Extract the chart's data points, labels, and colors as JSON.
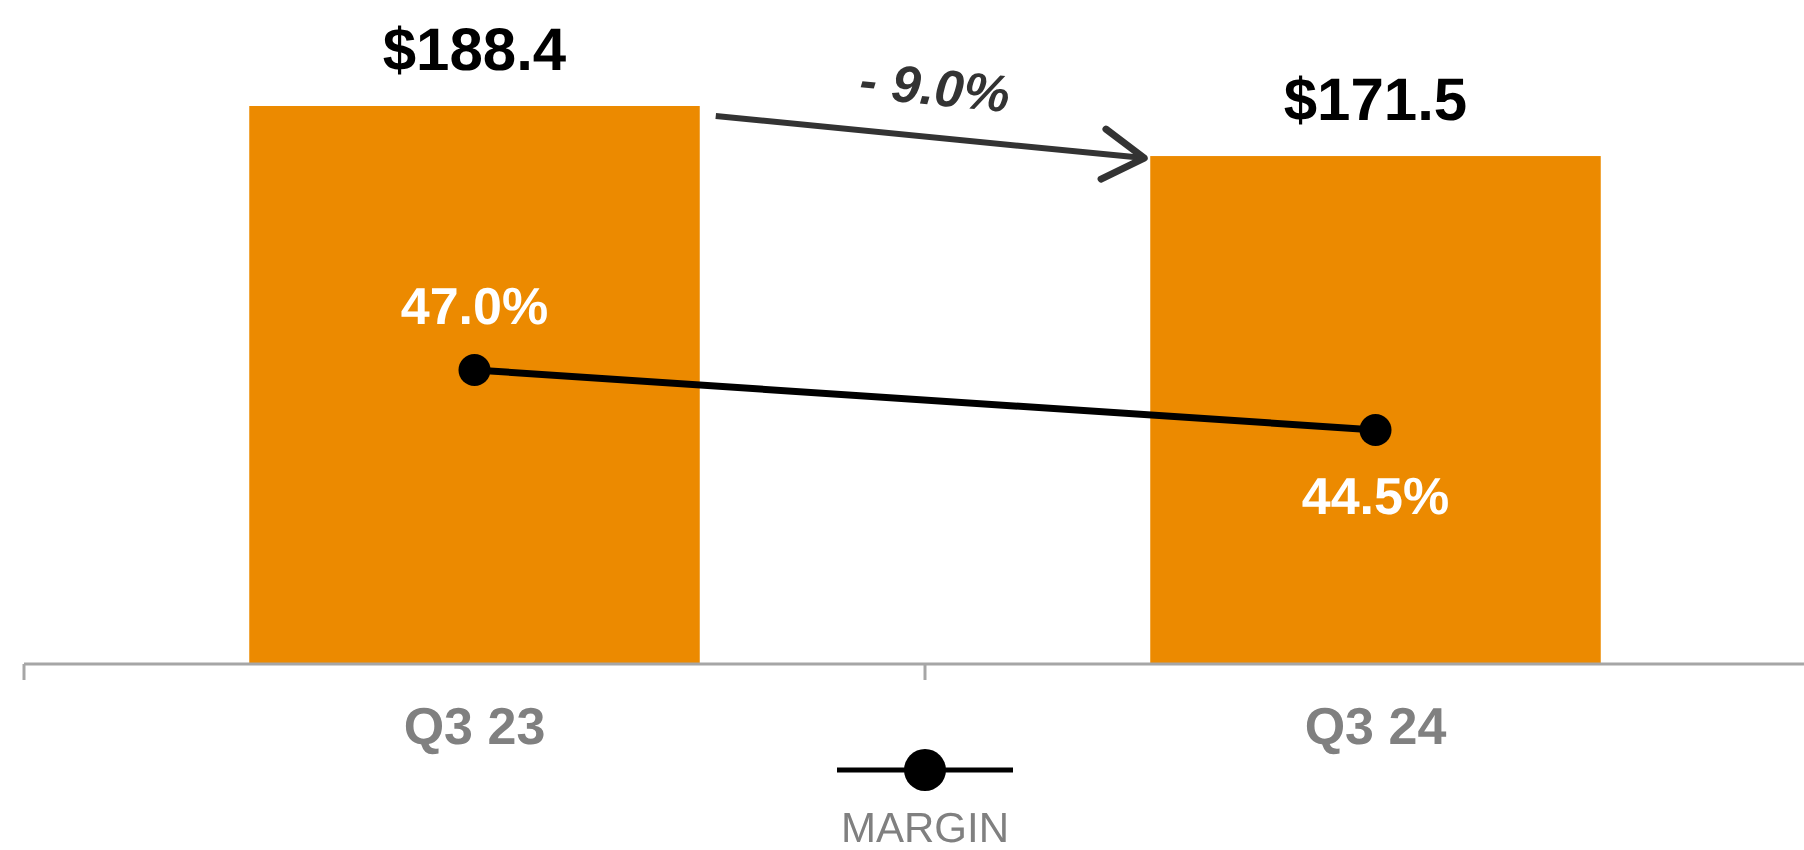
{
  "chart_data": {
    "type": "bar",
    "categories": [
      "Q3 23",
      "Q3 24"
    ],
    "series": [
      {
        "color": "#ec8a00",
        "values": [
          188.4,
          171.5
        ],
        "value_labels": [
          "$188.4",
          "$171.5"
        ]
      },
      {
        "type": "line",
        "name": "MARGIN",
        "color": "#000000",
        "axis": "y2",
        "values": [
          47.0,
          44.5
        ],
        "value_labels": [
          "47.0%",
          "44.5%"
        ]
      }
    ],
    "tick_labels": "x",
    "marker": "circle",
    "line_style": "solid",
    "legend": "bottom",
    "annotations": [
      "- 9.0%"
    ]
  }
}
